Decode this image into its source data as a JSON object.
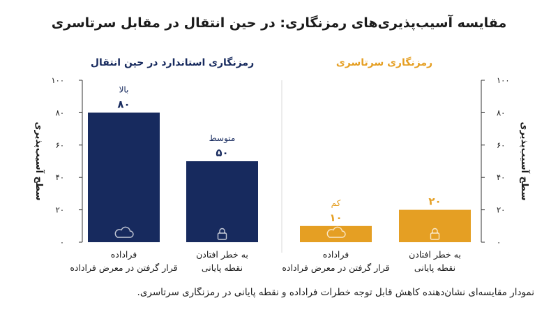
{
  "title": "مقایسه آسیب‌پذیری‌های رمزنگاری: در حین انتقال در مقابل سرتاسری",
  "caption": "نمودار مقایسه‌ای نشان‌دهنده کاهش قابل توجه خطرات فراداده و نقطه پایانی در رمزنگاری سرتاسری.",
  "colors": {
    "navy": "#172a5e",
    "amber": "#e59f23",
    "text": "#1b1b1b",
    "axis": "#333333",
    "divider": "#d8d8d8"
  },
  "chart_data": {
    "type": "bar",
    "ylabel": "سطح آسیب‌پذیری",
    "ylim": [
      0,
      100
    ],
    "yticks": [
      "۰",
      "۲۰",
      "۴۰",
      "۶۰",
      "۸۰",
      "۱۰۰"
    ],
    "panels": [
      {
        "name": "رمزنگاری استاندارد در حین انتقال",
        "color": "#172a5e",
        "categories": [
          {
            "line1": "فراداده",
            "line2": "قرار گرفتن در معرض فراداده"
          },
          {
            "line1": "به خطر افتادن",
            "line2": "نقطه پایانی"
          }
        ],
        "values": [
          80,
          50
        ],
        "value_labels": [
          "۸۰",
          "۵۰"
        ],
        "levels": [
          "بالا",
          "متوسط"
        ],
        "icons": [
          "cloud-icon",
          "lock-icon"
        ]
      },
      {
        "name": "رمزنگاری سرتاسری",
        "color": "#e59f23",
        "categories": [
          {
            "line1": "فراداده",
            "line2": "قرار گرفتن در معرض فراداده"
          },
          {
            "line1": "به خطر افتادن",
            "line2": "نقطه پایانی"
          }
        ],
        "values": [
          10,
          20
        ],
        "value_labels": [
          "۱۰",
          "۲۰"
        ],
        "levels": [
          "کم",
          ""
        ],
        "icons": [
          "cloud-icon",
          "lock-icon"
        ]
      }
    ]
  }
}
